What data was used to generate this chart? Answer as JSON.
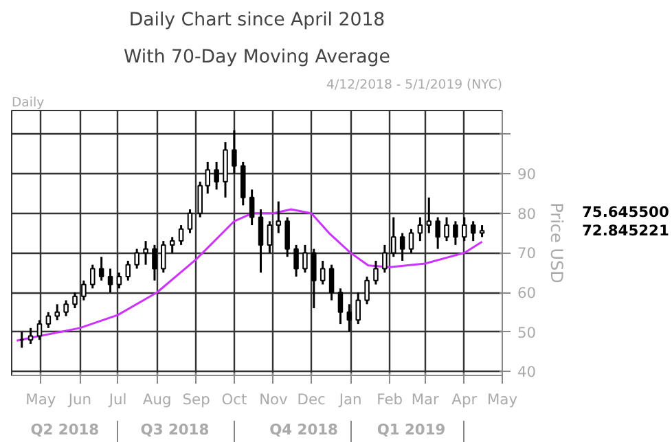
{
  "chart_data": {
    "type": "candlestick",
    "title": "Daily Chart since April 2018",
    "subtitle": "With 70-Day Moving Average",
    "ylabel": "Price USD",
    "annotations": [
      "Daily",
      "4/12/2018 - 5/1/2019 (NYC)",
      "75.645500",
      "72.845221"
    ],
    "x": [
      "2018-04-16",
      "2018-04-23",
      "2018-04-30",
      "2018-05-07",
      "2018-05-14",
      "2018-05-21",
      "2018-05-28",
      "2018-06-04",
      "2018-06-11",
      "2018-06-18",
      "2018-06-25",
      "2018-07-02",
      "2018-07-09",
      "2018-07-16",
      "2018-07-23",
      "2018-07-30",
      "2018-08-06",
      "2018-08-13",
      "2018-08-20",
      "2018-08-27",
      "2018-09-04",
      "2018-09-10",
      "2018-09-17",
      "2018-09-24",
      "2018-10-01",
      "2018-10-08",
      "2018-10-15",
      "2018-10-22",
      "2018-10-29",
      "2018-11-05",
      "2018-11-12",
      "2018-11-19",
      "2018-11-26",
      "2018-12-03",
      "2018-12-10",
      "2018-12-17",
      "2018-12-24",
      "2018-12-31",
      "2019-01-07",
      "2019-01-14",
      "2019-01-21",
      "2019-01-28",
      "2019-02-04",
      "2019-02-11",
      "2019-02-18",
      "2019-02-25",
      "2019-03-04",
      "2019-03-11",
      "2019-03-18",
      "2019-03-25",
      "2019-04-01",
      "2019-04-08",
      "2019-04-15"
    ],
    "ohlc": [
      [
        48,
        50,
        46,
        48
      ],
      [
        48,
        51,
        47,
        49
      ],
      [
        49,
        53,
        48,
        52
      ],
      [
        52,
        55,
        51,
        54
      ],
      [
        54,
        57,
        53,
        55
      ],
      [
        55,
        58,
        54,
        57
      ],
      [
        57,
        60,
        56,
        59
      ],
      [
        59,
        63,
        58,
        62
      ],
      [
        62,
        67,
        61,
        66
      ],
      [
        66,
        69,
        63,
        64
      ],
      [
        64,
        66,
        60,
        62
      ],
      [
        62,
        65,
        61,
        64
      ],
      [
        64,
        68,
        63,
        67
      ],
      [
        67,
        71,
        66,
        70
      ],
      [
        70,
        73,
        67,
        71
      ],
      [
        71,
        72,
        63,
        66
      ],
      [
        66,
        73,
        65,
        72
      ],
      [
        72,
        74,
        70,
        73
      ],
      [
        73,
        77,
        72,
        76
      ],
      [
        76,
        81,
        75,
        80
      ],
      [
        80,
        88,
        79,
        87
      ],
      [
        87,
        93,
        85,
        91
      ],
      [
        91,
        93,
        86,
        88
      ],
      [
        88,
        98,
        84,
        96
      ],
      [
        96,
        101,
        90,
        92
      ],
      [
        92,
        93,
        82,
        84
      ],
      [
        84,
        86,
        77,
        79
      ],
      [
        79,
        81,
        65,
        72
      ],
      [
        72,
        78,
        70,
        77
      ],
      [
        77,
        83,
        75,
        78
      ],
      [
        78,
        79,
        69,
        71
      ],
      [
        71,
        72,
        64,
        66
      ],
      [
        66,
        72,
        65,
        70
      ],
      [
        70,
        71,
        56,
        63
      ],
      [
        63,
        68,
        62,
        66
      ],
      [
        66,
        67,
        58,
        60
      ],
      [
        60,
        61,
        52,
        55
      ],
      [
        55,
        57,
        50,
        53
      ],
      [
        53,
        60,
        52,
        58
      ],
      [
        58,
        64,
        57,
        63
      ],
      [
        63,
        68,
        62,
        66
      ],
      [
        66,
        72,
        65,
        70
      ],
      [
        70,
        79,
        69,
        74
      ],
      [
        74,
        75,
        68,
        71
      ],
      [
        71,
        76,
        70,
        75
      ],
      [
        75,
        79,
        73,
        77
      ],
      [
        77,
        84,
        75,
        78
      ],
      [
        78,
        79,
        71,
        74
      ],
      [
        74,
        79,
        73,
        77
      ],
      [
        77,
        78,
        72,
        74
      ],
      [
        74,
        79,
        73,
        77
      ],
      [
        77,
        78,
        73,
        75
      ],
      [
        75,
        77,
        74,
        75.6
      ]
    ],
    "color": "#000000",
    "series": [
      {
        "type": "line",
        "color": "#cc33ff",
        "x": [
          "2018-04-12",
          "2018-06-01",
          "2018-07-01",
          "2018-08-01",
          "2018-09-01",
          "2018-10-01",
          "2018-10-15",
          "2018-11-01",
          "2018-11-15",
          "2018-12-01",
          "2018-12-15",
          "2019-01-01",
          "2019-01-15",
          "2019-02-01",
          "2019-03-01",
          "2019-04-01",
          "2019-04-15"
        ],
        "values": [
          47.8,
          51,
          54.3,
          60,
          68.4,
          78,
          80,
          80,
          81,
          80,
          75,
          70,
          66.8,
          66.4,
          67.3,
          70,
          72.8
        ]
      }
    ],
    "xlim": [
      "2018-04-08",
      "2019-05-01"
    ],
    "xticks": [
      {
        "value": "2018-05-01",
        "label": "May"
      },
      {
        "value": "2018-06-01",
        "label": "Jun"
      },
      {
        "value": "2018-07-01",
        "label": "Jul"
      },
      {
        "value": "2018-08-01",
        "label": "Aug"
      },
      {
        "value": "2018-09-01",
        "label": "Sep"
      },
      {
        "value": "2018-10-01",
        "label": "Oct"
      },
      {
        "value": "2018-11-01",
        "label": "Nov"
      },
      {
        "value": "2018-12-01",
        "label": "Dec"
      },
      {
        "value": "2019-01-01",
        "label": "Jan"
      },
      {
        "value": "2019-02-01",
        "label": "Feb"
      },
      {
        "value": "2019-03-01",
        "label": "Mar"
      },
      {
        "value": "2019-04-01",
        "label": "Apr"
      },
      {
        "value": "2019-05-01",
        "label": "May"
      }
    ],
    "x2lim": [
      "2018-04-08",
      "2019-05-01"
    ],
    "x2ticks": [
      {
        "value": "2018-05-20",
        "label": "Q2 2018"
      },
      {
        "value": "2018-07-01",
        "label": null
      },
      {
        "value": "2018-08-15",
        "label": "Q3 2018"
      },
      {
        "value": "2018-10-01",
        "label": null
      },
      {
        "value": "2018-11-25",
        "label": "Q4 2018"
      },
      {
        "value": "2019-01-01",
        "label": null
      },
      {
        "value": "2019-02-18",
        "label": "Q1 2019"
      },
      {
        "value": "2019-04-01",
        "label": null
      }
    ],
    "ylim": [
      39,
      106
    ],
    "yticks": [
      40,
      50,
      60,
      70,
      80,
      90,
      {
        "value": 100,
        "label": null
      }
    ],
    "grid": true
  }
}
